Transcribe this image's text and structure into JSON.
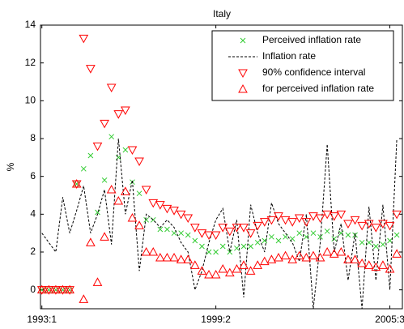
{
  "chart_data": {
    "type": "line-scatter",
    "title": "Italy",
    "y_label": "%",
    "x": [
      0,
      1,
      2,
      3,
      4,
      5,
      6,
      7,
      8,
      9,
      10,
      11,
      12,
      13,
      14,
      15,
      16,
      17,
      18,
      19,
      20,
      21,
      22,
      23,
      24,
      25,
      26,
      27,
      28,
      29,
      30,
      31,
      32,
      33,
      34,
      35,
      36,
      37,
      38,
      39,
      40,
      41,
      42,
      43,
      44,
      45,
      46,
      47,
      48,
      49,
      50,
      51
    ],
    "xlim": [
      -0.2,
      51.8
    ],
    "xticks": [
      {
        "value": 0,
        "label": "1993:1"
      },
      {
        "value": 25,
        "label": "1999:2"
      },
      {
        "value": 50,
        "label": "2005:3"
      }
    ],
    "ylim": [
      -1,
      14
    ],
    "yticks": [
      0,
      2,
      4,
      6,
      8,
      10,
      12,
      14
    ],
    "legend": "upper right",
    "series": [
      {
        "name": "Perceived inflation rate",
        "color": "#33cc33",
        "marker": "x",
        "values": [
          0,
          0,
          0,
          0,
          0,
          5.6,
          6.4,
          7.1,
          4.1,
          5.8,
          8.1,
          7.0,
          7.4,
          5.7,
          5.1,
          3.7,
          3.7,
          3.2,
          3.2,
          3.0,
          3.0,
          2.9,
          2.6,
          2.3,
          2.0,
          2.0,
          2.3,
          2.0,
          2.2,
          2.3,
          2.3,
          2.5,
          2.6,
          2.8,
          2.6,
          2.8,
          2.7,
          3.0,
          2.8,
          3.0,
          2.8,
          3.1,
          2.7,
          3.0,
          2.9,
          2.9,
          2.5,
          2.5,
          2.3,
          2.4,
          2.6,
          2.9
        ]
      },
      {
        "name": "Inflation rate",
        "color": "#000000",
        "marker": "dashed-line",
        "values": [
          3.0,
          2.5,
          2.0,
          4.9,
          3.0,
          4.2,
          5.5,
          3.0,
          4.0,
          5.3,
          2.4,
          8.0,
          4.0,
          5.8,
          1.0,
          4.0,
          3.7,
          3.3,
          3.7,
          3.3,
          2.5,
          2.0,
          0.0,
          1.0,
          2.5,
          3.7,
          4.3,
          2.0,
          3.7,
          -0.4,
          4.5,
          3.0,
          2.0,
          4.6,
          3.5,
          3.0,
          2.5,
          1.5,
          4.0,
          -1.0,
          2.5,
          7.7,
          2.0,
          3.5,
          0.5,
          3.0,
          -1.0,
          4.4,
          0.5,
          4.5,
          0.0,
          8.0
        ]
      },
      {
        "name": "90% confidence interval",
        "color": "#ff0000",
        "marker": "triangle-down",
        "values": [
          0,
          0,
          0,
          0,
          0,
          5.6,
          13.3,
          11.7,
          7.6,
          8.8,
          10.7,
          9.3,
          9.5,
          7.4,
          6.8,
          5.3,
          4.6,
          4.5,
          4.3,
          4.2,
          4.0,
          3.8,
          3.3,
          3.0,
          2.9,
          2.9,
          3.3,
          3.1,
          3.3,
          3.3,
          3.0,
          3.4,
          3.6,
          3.7,
          3.9,
          3.7,
          3.6,
          3.8,
          3.6,
          3.9,
          3.8,
          4.0,
          3.9,
          4.0,
          3.5,
          3.7,
          3.4,
          3.5,
          3.3,
          3.5,
          3.4,
          4.0
        ]
      },
      {
        "name": "for perceived inflation rate",
        "color": "#ff0000",
        "marker": "triangle-up",
        "values": [
          0,
          0,
          0,
          0,
          0,
          5.6,
          -0.5,
          2.5,
          0.4,
          2.8,
          5.3,
          4.7,
          5.2,
          3.8,
          3.4,
          2.0,
          2.0,
          1.7,
          1.7,
          1.7,
          1.6,
          1.6,
          1.3,
          1.0,
          0.8,
          0.8,
          1.1,
          0.9,
          1.1,
          1.3,
          1.0,
          1.3,
          1.5,
          1.6,
          1.7,
          1.8,
          1.6,
          1.8,
          1.7,
          1.8,
          1.7,
          2.0,
          1.9,
          2.0,
          1.6,
          1.6,
          1.4,
          1.3,
          1.2,
          1.3,
          1.1,
          1.9
        ]
      }
    ]
  }
}
